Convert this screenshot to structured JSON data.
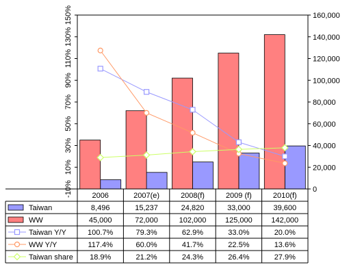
{
  "chart_data": {
    "type": "bar",
    "title": "",
    "xlabel": "",
    "categories": [
      "2006",
      "2007(e)",
      "2008(f)",
      "2009 (f)",
      "2010(f)"
    ],
    "bar_series": [
      {
        "name": "Taiwan",
        "values": [
          8496,
          15237,
          24820,
          33000,
          39600
        ],
        "display": [
          "8,496",
          "15,237",
          "24,820",
          "33,000",
          "39,600"
        ],
        "color": "#9999ff"
      },
      {
        "name": "WW",
        "values": [
          45000,
          72000,
          102000,
          125000,
          142000
        ],
        "display": [
          "45,000",
          "72,000",
          "102,000",
          "125,000",
          "142,000"
        ],
        "color": "#ff8080"
      }
    ],
    "line_series": [
      {
        "name": "Taiwan Y/Y",
        "values": [
          100.7,
          79.3,
          62.9,
          33.0,
          20.0
        ],
        "display": [
          "100.7%",
          "79.3%",
          "62.9%",
          "33.0%",
          "20.0%"
        ],
        "color": "#9999ff",
        "marker": "square"
      },
      {
        "name": "WW Y/Y",
        "values": [
          117.4,
          60.0,
          41.7,
          22.5,
          13.6
        ],
        "display": [
          "117.4%",
          "60.0%",
          "41.7%",
          "22.5%",
          "13.6%"
        ],
        "color": "#ff9966",
        "marker": "circle"
      },
      {
        "name": "Taiwan share",
        "values": [
          18.9,
          21.2,
          24.3,
          26.4,
          27.9
        ],
        "display": [
          "18.9%",
          "21.2%",
          "24.3%",
          "26.4%",
          "27.9%"
        ],
        "color": "#ccff66",
        "marker": "diamond"
      }
    ],
    "y_left": {
      "min": -10,
      "max": 150,
      "step": 20,
      "ticks": [
        "-10%",
        "10%",
        "30%",
        "50%",
        "70%",
        "90%",
        "110%",
        "130%",
        "150%"
      ]
    },
    "y_right": {
      "min": 0,
      "max": 160000,
      "step": 20000,
      "ticks": [
        "0",
        "20,000",
        "40,000",
        "60,000",
        "80,000",
        "100,000",
        "120,000",
        "140,000",
        "160,000"
      ]
    },
    "grid": false,
    "legend": "data table below chart"
  }
}
